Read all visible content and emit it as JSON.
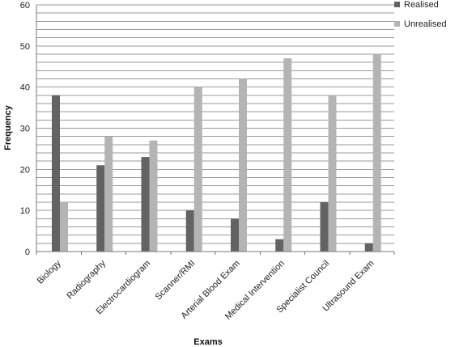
{
  "chart_data": {
    "type": "bar",
    "categories": [
      "Biology",
      "Radiography",
      "Electrocardiogram",
      "Scanner/RMI",
      "Arterial Blood Exam",
      "Medical Intervention",
      "Specialist Council",
      "Ultrasound Exam"
    ],
    "series": [
      {
        "name": "Realised",
        "values": [
          38,
          21,
          23,
          10,
          8,
          3,
          12,
          2
        ],
        "color": "#636363"
      },
      {
        "name": "Unrealised",
        "values": [
          12,
          28,
          27,
          40,
          42,
          47,
          38,
          48
        ],
        "color": "#b4b4b4"
      }
    ],
    "xlabel": "Exams",
    "ylabel": "Frequency",
    "ylim": [
      0,
      60
    ],
    "yticks": [
      0,
      10,
      20,
      30,
      40,
      50,
      60
    ],
    "minor_step": 2,
    "grid": true,
    "legend_position": "top-right"
  }
}
